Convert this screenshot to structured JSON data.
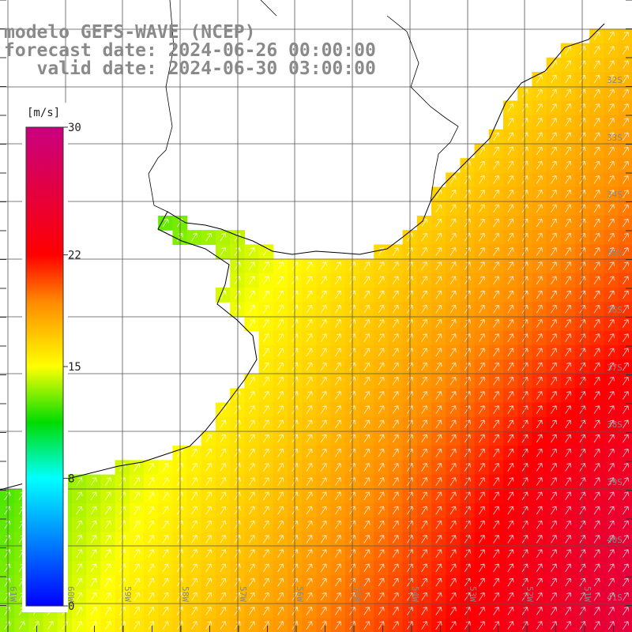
{
  "title": {
    "line1": "modelo GEFS-WAVE (NCEP)",
    "line2": "forecast date: 2024-06-26 00:00:00",
    "line3": "   valid date: 2024-06-30 03:00:00"
  },
  "colorbar": {
    "unit": "[m/s]",
    "ticks": [
      "30",
      "22",
      "15",
      "8",
      "0"
    ],
    "tick_values": [
      30,
      22,
      15,
      8,
      0
    ],
    "range": [
      0,
      30
    ],
    "colors": [
      "#0000ff",
      "#00ffff",
      "#00e000",
      "#ffff00",
      "#ff8000",
      "#ff0000",
      "#c00080"
    ]
  },
  "map": {
    "lon_labels": [
      "61W",
      "60W",
      "59W",
      "58W",
      "57W",
      "56W",
      "55W",
      "54W",
      "53W",
      "52W",
      "51W"
    ],
    "lat_labels": [
      "32S",
      "33S",
      "34S",
      "35S",
      "36S",
      "37S",
      "38S",
      "39S",
      "40S",
      "41S"
    ],
    "land_color": "#ffffff",
    "grid_color": "#555555",
    "coast_color": "#000000"
  }
}
